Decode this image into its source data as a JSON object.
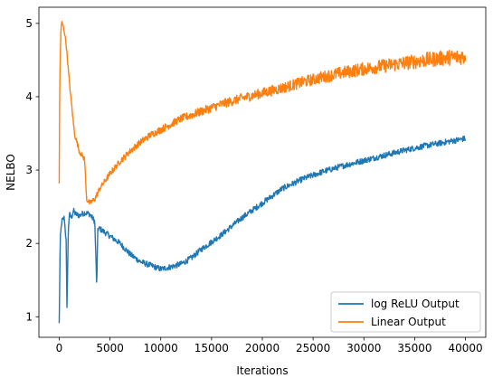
{
  "chart_data": {
    "type": "line",
    "title": "",
    "xlabel": "Iterations",
    "ylabel": "NELBO",
    "xlim": [
      -2000,
      42000
    ],
    "ylim": [
      0.72,
      5.22
    ],
    "xticks": [
      0,
      5000,
      10000,
      15000,
      20000,
      25000,
      30000,
      35000,
      40000
    ],
    "xtick_labels": [
      "0",
      "5000",
      "10000",
      "15000",
      "20000",
      "25000",
      "30000",
      "35000",
      "40000"
    ],
    "yticks": [
      1,
      2,
      3,
      4,
      5
    ],
    "ytick_labels": [
      "1",
      "2",
      "3",
      "4",
      "5"
    ],
    "grid": false,
    "legend": {
      "placement": "lower-right"
    },
    "series": [
      {
        "name": "log ReLU Output",
        "color": "#1f77b4",
        "noise": 0.04,
        "x": [
          0,
          100,
          250,
          500,
          700,
          750,
          900,
          1000,
          1200,
          1400,
          1600,
          2000,
          2500,
          3000,
          3500,
          3700,
          3800,
          4000,
          4500,
          5000,
          6000,
          7000,
          8000,
          9000,
          10000,
          11000,
          12000,
          13000,
          14000,
          15000,
          16000,
          18000,
          20000,
          22000,
          24000,
          26000,
          28000,
          30000,
          32000,
          34000,
          36000,
          38000,
          40000
        ],
        "y": [
          0.9,
          2.05,
          2.3,
          2.35,
          2.0,
          1.02,
          2.2,
          2.4,
          2.35,
          2.45,
          2.4,
          2.38,
          2.42,
          2.4,
          2.3,
          1.4,
          2.2,
          2.2,
          2.15,
          2.1,
          2.0,
          1.85,
          1.75,
          1.7,
          1.65,
          1.68,
          1.72,
          1.8,
          1.92,
          2.02,
          2.12,
          2.35,
          2.55,
          2.75,
          2.88,
          2.98,
          3.06,
          3.13,
          3.2,
          3.27,
          3.33,
          3.38,
          3.43
        ]
      },
      {
        "name": "Linear Output",
        "color": "#ff7f0e",
        "noise": 0.05,
        "x": [
          0,
          50,
          150,
          250,
          350,
          500,
          700,
          1000,
          1500,
          2000,
          2500,
          2700,
          3000,
          3500,
          4000,
          5000,
          6000,
          7000,
          8000,
          9000,
          10000,
          12000,
          14000,
          16000,
          18000,
          20000,
          22000,
          24000,
          26000,
          28000,
          30000,
          32000,
          34000,
          36000,
          38000,
          40000
        ],
        "y": [
          2.8,
          4.15,
          4.85,
          5.02,
          4.98,
          4.9,
          4.7,
          4.2,
          3.5,
          3.25,
          3.15,
          2.6,
          2.55,
          2.6,
          2.75,
          2.95,
          3.12,
          3.26,
          3.38,
          3.48,
          3.55,
          3.7,
          3.8,
          3.9,
          3.98,
          4.05,
          4.12,
          4.2,
          4.27,
          4.33,
          4.38,
          4.42,
          4.46,
          4.5,
          4.53,
          4.55
        ]
      }
    ]
  }
}
